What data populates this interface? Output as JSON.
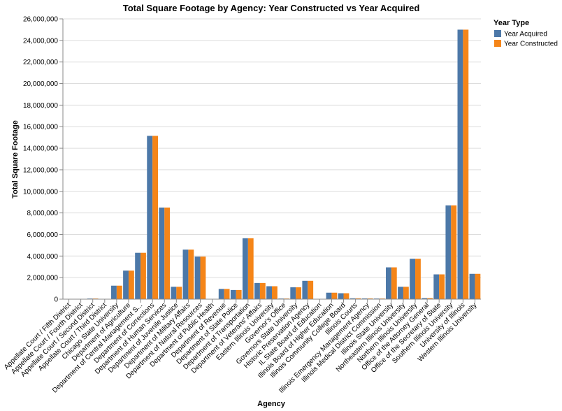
{
  "chart_data": {
    "type": "bar",
    "title": "Total Square Footage by Agency: Year Constructed vs Year Acquired",
    "xlabel": "Agency",
    "ylabel": "Total Square Footage",
    "ylim": [
      0,
      26000000
    ],
    "yticks": [
      0,
      2000000,
      4000000,
      6000000,
      8000000,
      10000000,
      12000000,
      14000000,
      16000000,
      18000000,
      20000000,
      22000000,
      24000000,
      26000000
    ],
    "ytick_labels": [
      "0",
      "2,000,000",
      "4,000,000",
      "6,000,000",
      "8,000,000",
      "10,000,000",
      "12,000,000",
      "14,000,000",
      "16,000,000",
      "18,000,000",
      "20,000,000",
      "22,000,000",
      "24,000,000",
      "26,000,000"
    ],
    "grid": true,
    "legend": {
      "title": "Year Type",
      "position": "top-right"
    },
    "categories": [
      "Appellate Court / Fifth District",
      "Appellate Court / Fourth District",
      "Appellate Court / Second District",
      "Appellate Court / Third District",
      "Chicago State University",
      "Department of Agriculture",
      "Department of Central Management S...",
      "Department of Corrections",
      "Department of Human Services",
      "Department of Juvenile Justice",
      "Department of Military Affairs",
      "Department of Natural Resources",
      "Department of Public Health",
      "Department of Revenue",
      "Department of State Police",
      "Department of Transportation",
      "Department of Veterans' Affairs",
      "Eastern Illinois University",
      "Governor's Office",
      "Governors State University",
      "Historic Preservation Agency",
      "IL State Board of Education",
      "Illinois Board of Higher Education",
      "Illinois Community College Board",
      "Illinois Courts",
      "Illinois Emergency Management Agency",
      "Illinois Medical District Commission",
      "Illinois State University",
      "Northeastern Illinois University",
      "Northern Illinois University",
      "Office of the Attorney General",
      "Office of the Secretary of State",
      "Southern Illinois University",
      "University of Illinois",
      "Western Illinois University"
    ],
    "series": [
      {
        "name": "Year Acquired",
        "color": "#4c78a8",
        "values": [
          8000,
          20000,
          60000,
          10000,
          1250000,
          2650000,
          4300000,
          15150000,
          8500000,
          1150000,
          4600000,
          3950000,
          20000,
          950000,
          850000,
          5650000,
          1500000,
          1200000,
          60000,
          1100000,
          1700000,
          20000,
          600000,
          550000,
          80000,
          70000,
          60000,
          2950000,
          1150000,
          3750000,
          100000,
          2300000,
          8700000,
          25000000,
          2350000
        ]
      },
      {
        "name": "Year Constructed",
        "color": "#f58518",
        "values": [
          8000,
          20000,
          60000,
          10000,
          1250000,
          2650000,
          4300000,
          15150000,
          8500000,
          1150000,
          4600000,
          3950000,
          20000,
          950000,
          850000,
          5650000,
          1500000,
          1200000,
          60000,
          1100000,
          1700000,
          20000,
          600000,
          550000,
          80000,
          70000,
          60000,
          2950000,
          1150000,
          3750000,
          100000,
          2300000,
          8700000,
          25000000,
          2350000
        ]
      }
    ]
  }
}
